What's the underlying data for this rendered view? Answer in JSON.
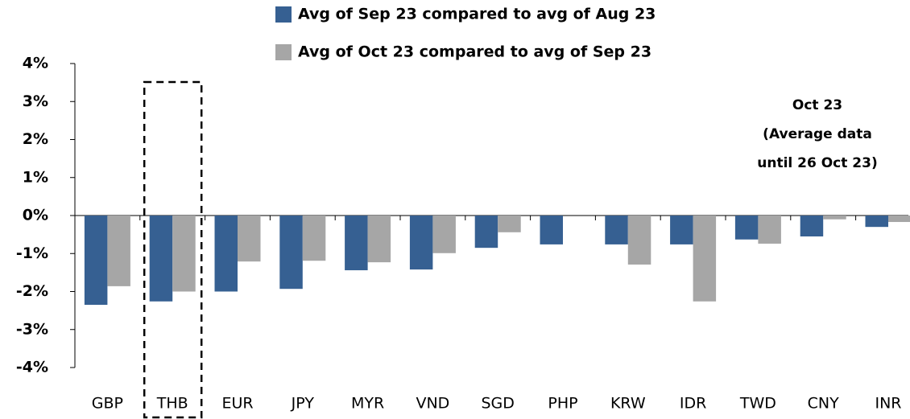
{
  "chart_data": {
    "type": "bar",
    "categories": [
      "GBP",
      "THB",
      "EUR",
      "JPY",
      "MYR",
      "VND",
      "SGD",
      "PHP",
      "KRW",
      "IDR",
      "TWD",
      "CNY",
      "INR"
    ],
    "series": [
      {
        "name": "Avg of Sep 23 compared to avg of Aug 23",
        "color": "#366092",
        "values": [
          -2.35,
          -2.26,
          -2.0,
          -1.93,
          -1.44,
          -1.42,
          -0.85,
          -0.76,
          -0.76,
          -0.76,
          -0.63,
          -0.55,
          -0.3
        ]
      },
      {
        "name": "Avg of Oct 23 compared to avg of Sep 23",
        "color": "#a6a6a6",
        "values": [
          -1.86,
          -2.0,
          -1.21,
          -1.19,
          -1.23,
          -0.99,
          -0.44,
          null,
          -1.29,
          -2.26,
          -0.74,
          -0.1,
          -0.17
        ]
      }
    ],
    "ylim": [
      -4,
      4
    ],
    "yticks": [
      {
        "value": -4,
        "label": "-4%"
      },
      {
        "value": -3,
        "label": "-3%"
      },
      {
        "value": -2,
        "label": "-2%"
      },
      {
        "value": -1,
        "label": "-1%"
      },
      {
        "value": 0,
        "label": "0%"
      },
      {
        "value": 1,
        "label": "1%"
      },
      {
        "value": 2,
        "label": "2%"
      },
      {
        "value": 3,
        "label": "3%"
      },
      {
        "value": 4,
        "label": "4%"
      }
    ],
    "annotation": [
      "Oct 23",
      "(Average data",
      "until 26 Oct 23)"
    ],
    "highlight": "THB",
    "grid": false
  }
}
